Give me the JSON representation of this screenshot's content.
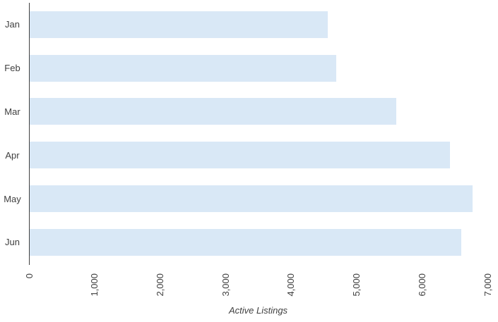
{
  "chart_data": {
    "type": "bar",
    "orientation": "horizontal",
    "title": "",
    "xlabel": "Active Listings",
    "ylabel": "",
    "categories": [
      "Jan",
      "Feb",
      "Mar",
      "Apr",
      "May",
      "Jun"
    ],
    "values": [
      4550,
      4680,
      5600,
      6420,
      6760,
      6590
    ],
    "xlim": [
      0,
      7000
    ],
    "x_ticks": [
      "0",
      "1,000",
      "2,000",
      "3,000",
      "4,000",
      "5,000",
      "6,000",
      "7,000"
    ],
    "x_tick_step": 1000,
    "grid": false,
    "legend": false,
    "colors": {
      "bar_fill": "#D9E8F6",
      "axis_line": "#404040",
      "text": "#404040",
      "background": "#FFFFFF"
    }
  }
}
